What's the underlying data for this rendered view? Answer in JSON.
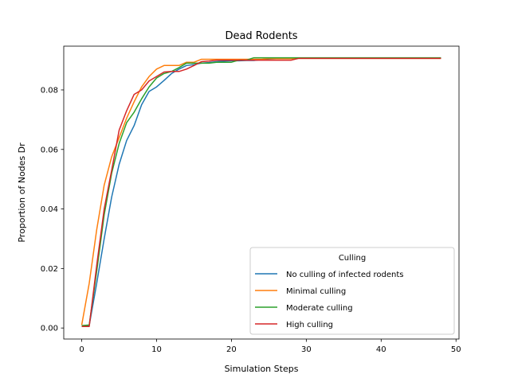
{
  "chart_data": {
    "type": "line",
    "title": "Dead Rodents",
    "xlabel": "Simulation Steps",
    "ylabel": "Proportion of Nodes Dr",
    "xlim": [
      -2.4,
      50.4
    ],
    "ylim": [
      -0.0037,
      0.0947
    ],
    "xticks": [
      0,
      10,
      20,
      30,
      40,
      50
    ],
    "yticks": [
      0.0,
      0.02,
      0.04,
      0.06,
      0.08
    ],
    "ytick_labels": [
      "0.00",
      "0.02",
      "0.04",
      "0.06",
      "0.08"
    ],
    "grid": false,
    "legend": {
      "title": "Culling",
      "position": "lower-right"
    },
    "x": [
      0,
      1,
      2,
      3,
      4,
      5,
      6,
      7,
      8,
      9,
      10,
      11,
      12,
      13,
      14,
      15,
      16,
      17,
      18,
      19,
      20,
      21,
      22,
      23,
      24,
      25,
      26,
      27,
      28,
      29,
      30,
      31,
      32,
      33,
      34,
      35,
      36,
      37,
      38,
      39,
      40,
      41,
      42,
      43,
      44,
      45,
      46,
      47,
      48
    ],
    "series": [
      {
        "name": "No culling of infected rodents",
        "color": "#1f77b4",
        "values": [
          0.0005,
          0.0008,
          0.015,
          0.03,
          0.044,
          0.055,
          0.063,
          0.068,
          0.075,
          0.0795,
          0.081,
          0.0832,
          0.0855,
          0.087,
          0.0882,
          0.0885,
          0.089,
          0.0892,
          0.0895,
          0.0897,
          0.0898,
          0.0898,
          0.0899,
          0.0899,
          0.0902,
          0.0904,
          0.0905,
          0.0906,
          0.0906,
          0.0907,
          0.0907,
          0.0907,
          0.0907,
          0.0907,
          0.0907,
          0.0907,
          0.0907,
          0.0907,
          0.0907,
          0.0907,
          0.0907,
          0.0907,
          0.0907,
          0.0907,
          0.0907,
          0.0907,
          0.0907,
          0.0907,
          0.0907
        ]
      },
      {
        "name": "Minimal culling",
        "color": "#ff7f0e",
        "values": [
          0.001,
          0.015,
          0.033,
          0.048,
          0.0575,
          0.064,
          0.0705,
          0.076,
          0.081,
          0.0845,
          0.087,
          0.0882,
          0.0882,
          0.0882,
          0.0893,
          0.0893,
          0.0903,
          0.0903,
          0.0903,
          0.0903,
          0.0903,
          0.0903,
          0.0903,
          0.0903,
          0.0903,
          0.0905,
          0.0905,
          0.0905,
          0.0905,
          0.0906,
          0.0906,
          0.0906,
          0.0906,
          0.0906,
          0.0906,
          0.0906,
          0.0906,
          0.0906,
          0.0906,
          0.0906,
          0.0906,
          0.0906,
          0.0906,
          0.0906,
          0.0906,
          0.0906,
          0.0906,
          0.0906,
          0.0906
        ]
      },
      {
        "name": "Moderate culling",
        "color": "#2ca02c",
        "values": [
          0.0008,
          0.001,
          0.019,
          0.038,
          0.052,
          0.062,
          0.069,
          0.0725,
          0.077,
          0.081,
          0.084,
          0.0855,
          0.0862,
          0.0875,
          0.089,
          0.089,
          0.089,
          0.089,
          0.0893,
          0.0893,
          0.0893,
          0.09,
          0.09,
          0.0908,
          0.0908,
          0.0908,
          0.0908,
          0.0908,
          0.0908,
          0.0908,
          0.0908,
          0.0908,
          0.0908,
          0.0908,
          0.0908,
          0.0908,
          0.0908,
          0.0908,
          0.0908,
          0.0908,
          0.0908,
          0.0908,
          0.0908,
          0.0908,
          0.0908,
          0.0908,
          0.0908,
          0.0908,
          0.0908
        ]
      },
      {
        "name": "High culling",
        "color": "#d62728",
        "values": [
          0.0005,
          0.0005,
          0.021,
          0.04,
          0.053,
          0.0665,
          0.073,
          0.0785,
          0.08,
          0.083,
          0.0845,
          0.086,
          0.0862,
          0.0862,
          0.087,
          0.0882,
          0.0895,
          0.0897,
          0.09,
          0.09,
          0.09,
          0.09,
          0.09,
          0.09,
          0.09,
          0.09,
          0.09,
          0.09,
          0.09,
          0.0906,
          0.0906,
          0.0906,
          0.0906,
          0.0906,
          0.0906,
          0.0906,
          0.0906,
          0.0906,
          0.0906,
          0.0906,
          0.0906,
          0.0906,
          0.0906,
          0.0906,
          0.0906,
          0.0906,
          0.0906,
          0.0906,
          0.0906
        ]
      }
    ]
  }
}
